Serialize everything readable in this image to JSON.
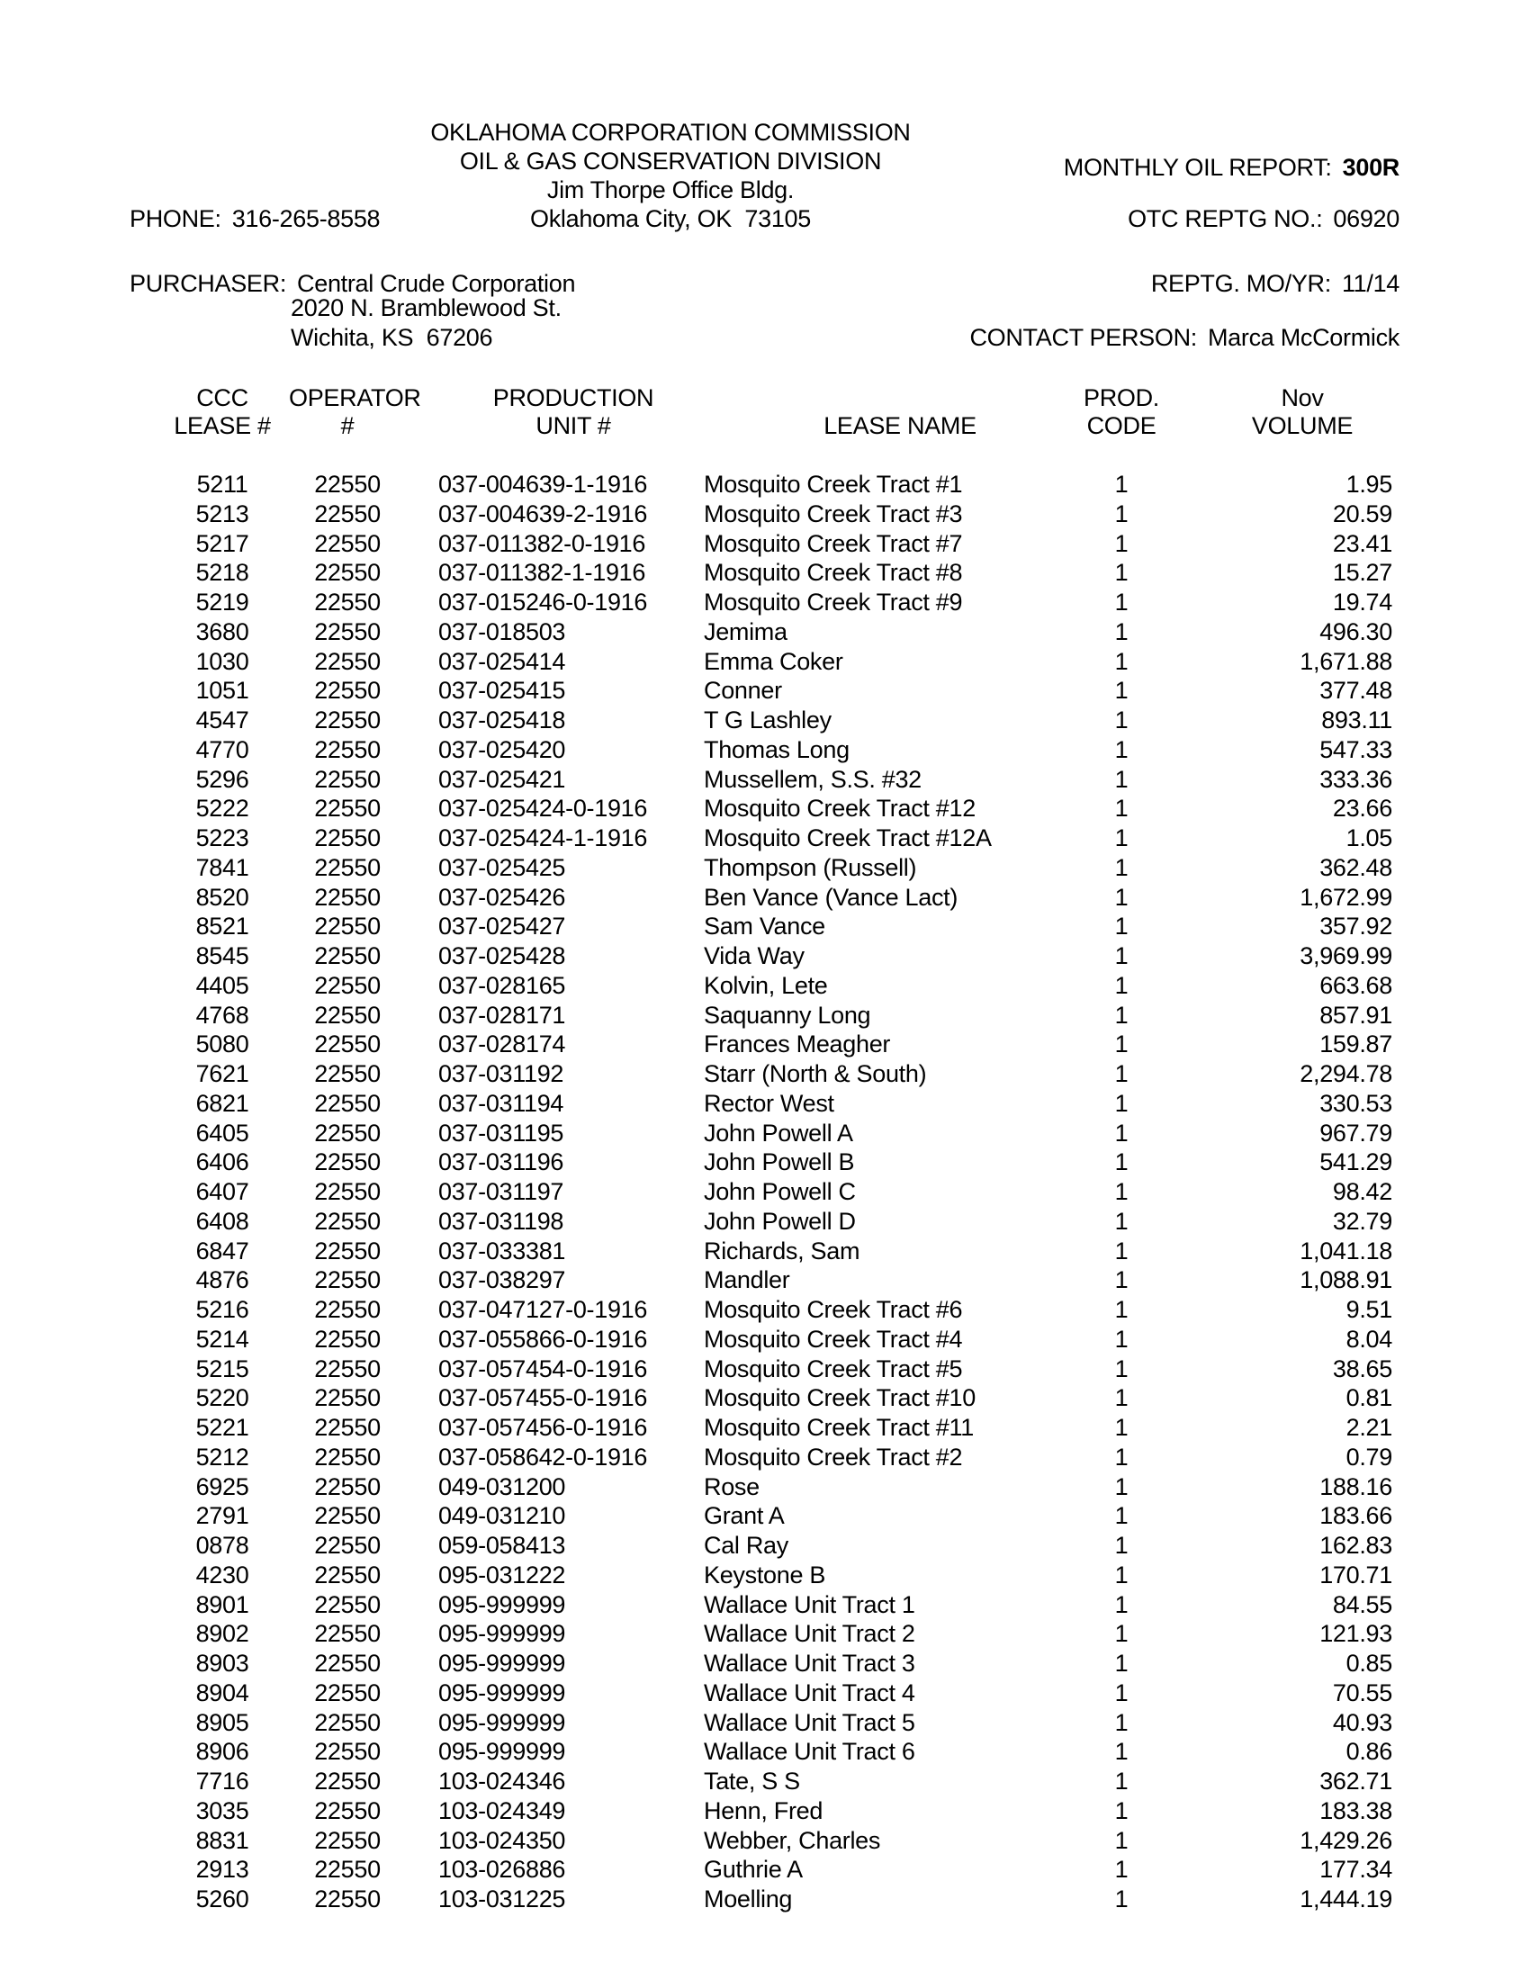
{
  "header": {
    "agency_line1": "OKLAHOMA CORPORATION COMMISSION",
    "agency_line2": "OIL & GAS CONSERVATION DIVISION",
    "agency_line3": "Jim Thorpe Office Bldg.",
    "agency_line4": "Oklahoma City, OK  73105",
    "phone_label": "PHONE:",
    "phone_value": "316-265-8558",
    "report_label": "MONTHLY OIL REPORT:",
    "report_value": "300R",
    "otc_label": "OTC REPTG NO.:",
    "otc_value": "06920"
  },
  "purchaser": {
    "label": "PURCHASER:",
    "name": "Central Crude Corporation",
    "address_line1": "2020 N. Bramblewood St.",
    "address_line2": "Wichita, KS  67206",
    "reptg_label": "REPTG. MO/YR:",
    "reptg_value": "11/14",
    "contact_label": "CONTACT PERSON:",
    "contact_value": "Marca McCormick"
  },
  "table": {
    "header_row1": [
      "CCC",
      "OPERATOR",
      "PRODUCTION",
      "",
      "PROD.",
      "Nov"
    ],
    "header_row2": [
      "LEASE #",
      "#",
      "UNIT #",
      "LEASE NAME",
      "CODE",
      "VOLUME"
    ],
    "row_fields": [
      "ccc_lease_number",
      "operator_number",
      "production_unit_number",
      "lease_name",
      "prod_code",
      "nov_volume"
    ],
    "rows": [
      [
        "5211",
        "22550",
        "037-004639-1-1916",
        "Mosquito Creek Tract #1",
        "1",
        "1.95"
      ],
      [
        "5213",
        "22550",
        "037-004639-2-1916",
        "Mosquito Creek Tract #3",
        "1",
        "20.59"
      ],
      [
        "5217",
        "22550",
        "037-011382-0-1916",
        "Mosquito Creek Tract #7",
        "1",
        "23.41"
      ],
      [
        "5218",
        "22550",
        "037-011382-1-1916",
        "Mosquito Creek Tract #8",
        "1",
        "15.27"
      ],
      [
        "5219",
        "22550",
        "037-015246-0-1916",
        "Mosquito Creek Tract #9",
        "1",
        "19.74"
      ],
      [
        "3680",
        "22550",
        "037-018503",
        "Jemima",
        "1",
        "496.30"
      ],
      [
        "1030",
        "22550",
        "037-025414",
        "Emma Coker",
        "1",
        "1,671.88"
      ],
      [
        "1051",
        "22550",
        "037-025415",
        "Conner",
        "1",
        "377.48"
      ],
      [
        "4547",
        "22550",
        "037-025418",
        "T G Lashley",
        "1",
        "893.11"
      ],
      [
        "4770",
        "22550",
        "037-025420",
        "Thomas Long",
        "1",
        "547.33"
      ],
      [
        "5296",
        "22550",
        "037-025421",
        "Mussellem, S.S. #32",
        "1",
        "333.36"
      ],
      [
        "5222",
        "22550",
        "037-025424-0-1916",
        "Mosquito Creek Tract #12",
        "1",
        "23.66"
      ],
      [
        "5223",
        "22550",
        "037-025424-1-1916",
        "Mosquito Creek Tract #12A",
        "1",
        "1.05"
      ],
      [
        "7841",
        "22550",
        "037-025425",
        "Thompson (Russell)",
        "1",
        "362.48"
      ],
      [
        "8520",
        "22550",
        "037-025426",
        "Ben Vance (Vance Lact)",
        "1",
        "1,672.99"
      ],
      [
        "8521",
        "22550",
        "037-025427",
        "Sam Vance",
        "1",
        "357.92"
      ],
      [
        "8545",
        "22550",
        "037-025428",
        "Vida Way",
        "1",
        "3,969.99"
      ],
      [
        "4405",
        "22550",
        "037-028165",
        "Kolvin, Lete",
        "1",
        "663.68"
      ],
      [
        "4768",
        "22550",
        "037-028171",
        "Saquanny Long",
        "1",
        "857.91"
      ],
      [
        "5080",
        "22550",
        "037-028174",
        "Frances Meagher",
        "1",
        "159.87"
      ],
      [
        "7621",
        "22550",
        "037-031192",
        "Starr (North & South)",
        "1",
        "2,294.78"
      ],
      [
        "6821",
        "22550",
        "037-031194",
        "Rector West",
        "1",
        "330.53"
      ],
      [
        "6405",
        "22550",
        "037-031195",
        "John Powell A",
        "1",
        "967.79"
      ],
      [
        "6406",
        "22550",
        "037-031196",
        "John Powell B",
        "1",
        "541.29"
      ],
      [
        "6407",
        "22550",
        "037-031197",
        "John Powell C",
        "1",
        "98.42"
      ],
      [
        "6408",
        "22550",
        "037-031198",
        "John Powell D",
        "1",
        "32.79"
      ],
      [
        "6847",
        "22550",
        "037-033381",
        "Richards, Sam",
        "1",
        "1,041.18"
      ],
      [
        "4876",
        "22550",
        "037-038297",
        "Mandler",
        "1",
        "1,088.91"
      ],
      [
        "5216",
        "22550",
        "037-047127-0-1916",
        "Mosquito Creek Tract #6",
        "1",
        "9.51"
      ],
      [
        "5214",
        "22550",
        "037-055866-0-1916",
        "Mosquito Creek Tract #4",
        "1",
        "8.04"
      ],
      [
        "5215",
        "22550",
        "037-057454-0-1916",
        "Mosquito Creek Tract #5",
        "1",
        "38.65"
      ],
      [
        "5220",
        "22550",
        "037-057455-0-1916",
        "Mosquito Creek Tract #10",
        "1",
        "0.81"
      ],
      [
        "5221",
        "22550",
        "037-057456-0-1916",
        "Mosquito Creek Tract #11",
        "1",
        "2.21"
      ],
      [
        "5212",
        "22550",
        "037-058642-0-1916",
        "Mosquito Creek Tract #2",
        "1",
        "0.79"
      ],
      [
        "6925",
        "22550",
        "049-031200",
        "Rose",
        "1",
        "188.16"
      ],
      [
        "2791",
        "22550",
        "049-031210",
        "Grant A",
        "1",
        "183.66"
      ],
      [
        "0878",
        "22550",
        "059-058413",
        "Cal Ray",
        "1",
        "162.83"
      ],
      [
        "4230",
        "22550",
        "095-031222",
        "Keystone B",
        "1",
        "170.71"
      ],
      [
        "8901",
        "22550",
        "095-999999",
        "Wallace Unit Tract 1",
        "1",
        "84.55"
      ],
      [
        "8902",
        "22550",
        "095-999999",
        "Wallace Unit Tract 2",
        "1",
        "121.93"
      ],
      [
        "8903",
        "22550",
        "095-999999",
        "Wallace Unit Tract 3",
        "1",
        "0.85"
      ],
      [
        "8904",
        "22550",
        "095-999999",
        "Wallace Unit Tract 4",
        "1",
        "70.55"
      ],
      [
        "8905",
        "22550",
        "095-999999",
        "Wallace Unit Tract 5",
        "1",
        "40.93"
      ],
      [
        "8906",
        "22550",
        "095-999999",
        "Wallace Unit Tract 6",
        "1",
        "0.86"
      ],
      [
        "7716",
        "22550",
        "103-024346",
        "Tate, S S",
        "1",
        "362.71"
      ],
      [
        "3035",
        "22550",
        "103-024349",
        "Henn, Fred",
        "1",
        "183.38"
      ],
      [
        "8831",
        "22550",
        "103-024350",
        "Webber, Charles",
        "1",
        "1,429.26"
      ],
      [
        "2913",
        "22550",
        "103-026886",
        "Guthrie A",
        "1",
        "177.34"
      ],
      [
        "5260",
        "22550",
        "103-031225",
        "Moelling",
        "1",
        "1,444.19"
      ]
    ]
  }
}
